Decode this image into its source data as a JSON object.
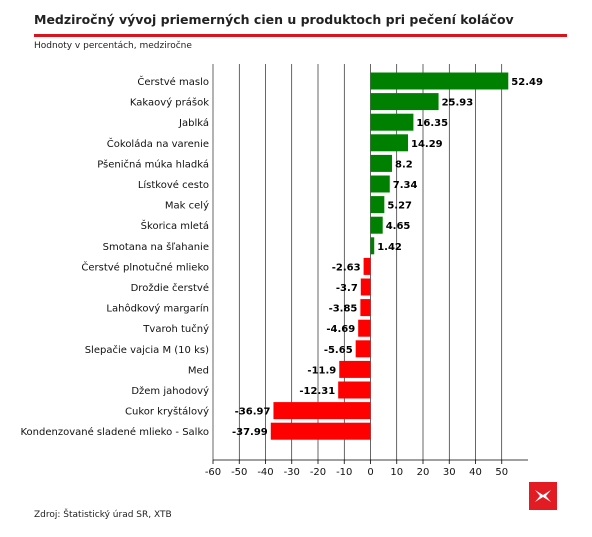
{
  "header": {
    "title": "Medziročný vývoj priemerných cien u produktoch pri pečení koláčov",
    "subtitle": "Hodnoty v percentách, medziročne"
  },
  "footer": {
    "source": "Zdroj: Štatistický úrad SR, XTB"
  },
  "colors": {
    "positive": "#008000",
    "negative": "#ff0000",
    "accent_rule": "#d9141c",
    "grid": "#000000"
  },
  "logo": {
    "icon": "xtb-logo-icon",
    "color": "#e31b23"
  },
  "chart_data": {
    "type": "bar",
    "orientation": "horizontal",
    "title": "Medziročný vývoj priemerných cien u produktoch pri pečení koláčov",
    "subtitle": "Hodnoty v percentách, medziročne",
    "categories": [
      "Čerstvé maslo",
      "Kakaový prášok",
      "Jablká",
      "Čokoláda na varenie",
      "Pšeničná múka hladká",
      "Lístkové cesto",
      "Mak celý",
      "Škorica mletá",
      "Smotana na šľahanie",
      "Čerstvé plnotučné mlieko",
      "Droždie čerstvé",
      "Lahôdkový margarín",
      "Tvaroh tučný",
      "Slepačie vajcia M (10 ks)",
      "Med",
      "Džem jahodový",
      "Cukor kryštálový",
      "Kondenzované sladené mlieko - Salko"
    ],
    "values": [
      52.49,
      25.93,
      16.35,
      14.29,
      8.2,
      7.34,
      5.27,
      4.65,
      1.42,
      -2.63,
      -3.7,
      -3.85,
      -4.69,
      -5.65,
      -11.9,
      -12.31,
      -36.97,
      -37.99
    ],
    "value_labels": [
      "52.49",
      "25.93",
      "16.35",
      "14.29",
      "8.2",
      "7.34",
      "5.27",
      "4.65",
      "1.42",
      "-2.63",
      "-3.7",
      "-3.85",
      "-4.69",
      "-5.65",
      "-11.9",
      "-12.31",
      "-36.97",
      "-37.99"
    ],
    "xlim": [
      -60,
      60
    ],
    "xticks": [
      -60,
      -50,
      -40,
      -30,
      -20,
      -10,
      0,
      10,
      20,
      30,
      40,
      50
    ],
    "xtick_labels": [
      "-60",
      "-50",
      "-40",
      "-30",
      "-20",
      "-10",
      "0",
      "10",
      "20",
      "30",
      "40",
      "50"
    ],
    "grid": "vertical",
    "xlabel": "",
    "ylabel": ""
  }
}
